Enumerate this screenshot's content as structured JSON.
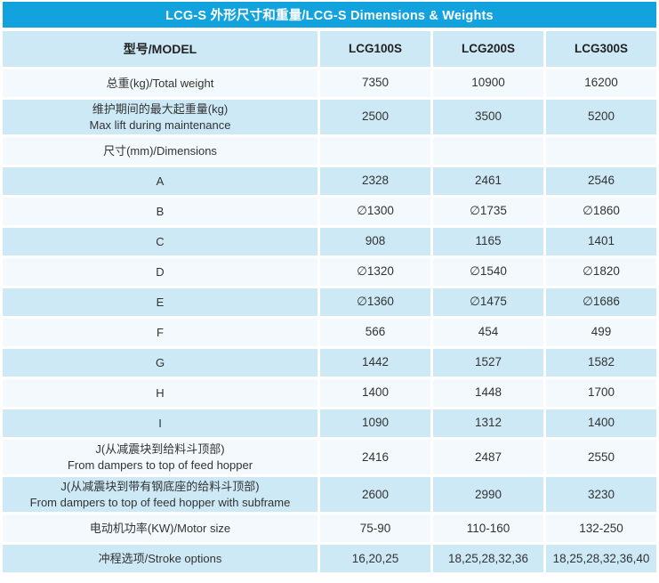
{
  "title": "LCG-S 外形尺寸和重量/LCG-S Dimensions & Weights",
  "colors": {
    "banner_background": "#12a3de",
    "banner_text": "#ffffff",
    "row_tint": "#cde9f6",
    "row_light": "#f3f9fc",
    "text": "#333333"
  },
  "table": {
    "header": {
      "model_label": "型号/MODEL",
      "models": [
        "LCG100S",
        "LCG200S",
        "LCG300S"
      ]
    },
    "rows": [
      {
        "label": "总重(kg)/Total weight",
        "values": [
          "7350",
          "10900",
          "16200"
        ]
      },
      {
        "label": "维护期间的最大起重量(kg)\nMax lift during maintenance",
        "values": [
          "2500",
          "3500",
          "5200"
        ]
      },
      {
        "label": "尺寸(mm)/Dimensions",
        "values": [
          "",
          "",
          ""
        ]
      },
      {
        "label": "A",
        "values": [
          "2328",
          "2461",
          "2546"
        ]
      },
      {
        "label": "B",
        "values": [
          "∅1300",
          "∅1735",
          "∅1860"
        ]
      },
      {
        "label": "C",
        "values": [
          "908",
          "1165",
          "1401"
        ]
      },
      {
        "label": "D",
        "values": [
          "∅1320",
          "∅1540",
          "∅1820"
        ]
      },
      {
        "label": "E",
        "values": [
          "∅1360",
          "∅1475",
          "∅1686"
        ]
      },
      {
        "label": "F",
        "values": [
          "566",
          "454",
          "499"
        ]
      },
      {
        "label": "G",
        "values": [
          "1442",
          "1527",
          "1582"
        ]
      },
      {
        "label": "H",
        "values": [
          "1400",
          "1448",
          "1700"
        ]
      },
      {
        "label": "I",
        "values": [
          "1090",
          "1312",
          "1400"
        ]
      },
      {
        "label": "J(从减震块到给料斗顶部)\nFrom dampers to top of feed hopper",
        "values": [
          "2416",
          "2487",
          "2550"
        ]
      },
      {
        "label": "J(从减震块到带有钢底座的给料斗顶部)\nFrom dampers to top of feed hopper with subframe",
        "values": [
          "2600",
          "2990",
          "3230"
        ]
      },
      {
        "label": "电动机功率(KW)/Motor size",
        "values": [
          "75-90",
          "110-160",
          "132-250"
        ]
      },
      {
        "label": "冲程选项/Stroke options",
        "values": [
          "16,20,25",
          "18,25,28,32,36",
          "18,25,28,32,36,40"
        ]
      }
    ]
  }
}
